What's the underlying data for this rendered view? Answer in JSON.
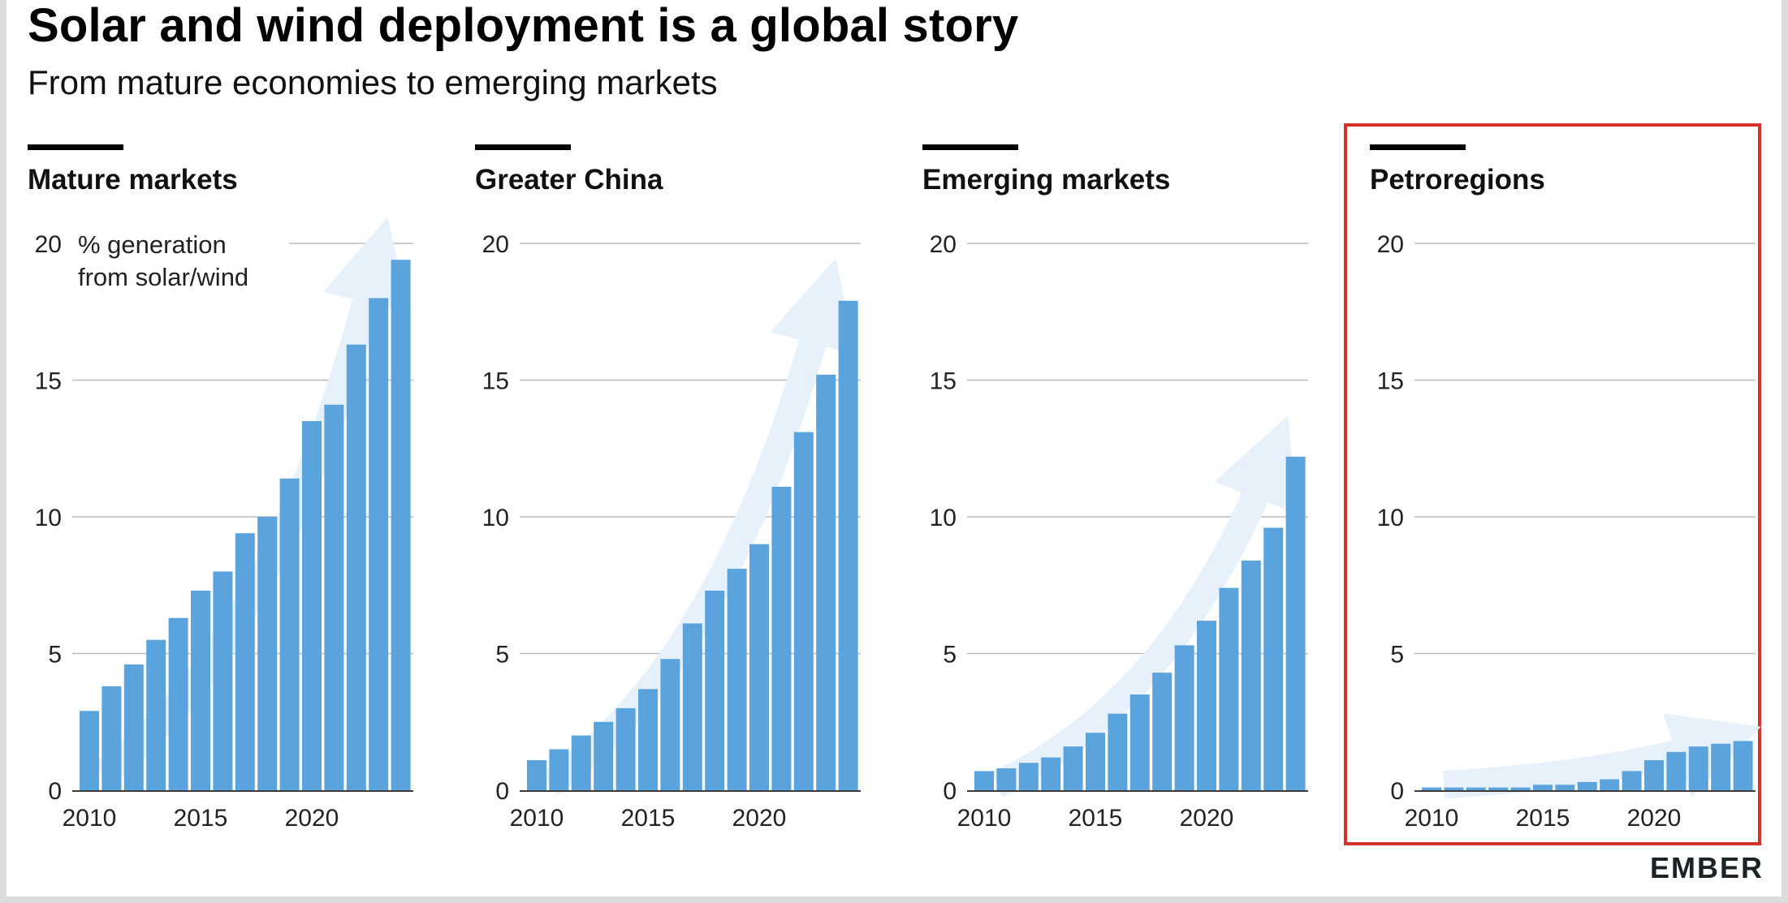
{
  "title": "Solar and wind deployment is a global story",
  "subtitle": "From mature economies to emerging markets",
  "logo_text": "EMBER",
  "colors": {
    "bar": "#5ba3dc",
    "arrow": "#e6f1fb",
    "gridline": "#b9bcbf",
    "highlight_border": "#d6312b",
    "panel_rule": "#000000"
  },
  "chart_data": [
    {
      "type": "bar",
      "title": "Mature markets",
      "ylabel": "% generation from solar/wind",
      "ylim": [
        0,
        20
      ],
      "yticks": [
        0,
        5,
        10,
        15,
        20
      ],
      "xticks": [
        "2010",
        "2015",
        "2020"
      ],
      "grid": true,
      "highlighted": false,
      "categories": [
        "2010",
        "2011",
        "2012",
        "2013",
        "2014",
        "2015",
        "2016",
        "2017",
        "2018",
        "2019",
        "2020",
        "2021",
        "2022",
        "2023",
        "2024"
      ],
      "values": [
        2.9,
        3.8,
        4.6,
        5.5,
        6.3,
        7.3,
        8.0,
        9.4,
        10.0,
        11.4,
        13.5,
        14.1,
        16.3,
        18.0,
        19.4
      ]
    },
    {
      "type": "bar",
      "title": "Greater China",
      "ylabel": "",
      "ylim": [
        0,
        20
      ],
      "yticks": [
        0,
        5,
        10,
        15,
        20
      ],
      "xticks": [
        "2010",
        "2015",
        "2020"
      ],
      "grid": true,
      "highlighted": false,
      "categories": [
        "2010",
        "2011",
        "2012",
        "2013",
        "2014",
        "2015",
        "2016",
        "2017",
        "2018",
        "2019",
        "2020",
        "2021",
        "2022",
        "2023",
        "2024"
      ],
      "values": [
        1.1,
        1.5,
        2.0,
        2.5,
        3.0,
        3.7,
        4.8,
        6.1,
        7.3,
        8.1,
        9.0,
        11.1,
        13.1,
        15.2,
        17.9
      ]
    },
    {
      "type": "bar",
      "title": "Emerging markets",
      "ylabel": "",
      "ylim": [
        0,
        20
      ],
      "yticks": [
        0,
        5,
        10,
        15,
        20
      ],
      "xticks": [
        "2010",
        "2015",
        "2020"
      ],
      "grid": true,
      "highlighted": false,
      "categories": [
        "2010",
        "2011",
        "2012",
        "2013",
        "2014",
        "2015",
        "2016",
        "2017",
        "2018",
        "2019",
        "2020",
        "2021",
        "2022",
        "2023",
        "2024"
      ],
      "values": [
        0.7,
        0.8,
        1.0,
        1.2,
        1.6,
        2.1,
        2.8,
        3.5,
        4.3,
        5.3,
        6.2,
        7.4,
        8.4,
        9.6,
        12.2
      ]
    },
    {
      "type": "bar",
      "title": "Petroregions",
      "ylabel": "",
      "ylim": [
        0,
        20
      ],
      "yticks": [
        0,
        5,
        10,
        15,
        20
      ],
      "xticks": [
        "2010",
        "2015",
        "2020"
      ],
      "grid": true,
      "highlighted": true,
      "categories": [
        "2010",
        "2011",
        "2012",
        "2013",
        "2014",
        "2015",
        "2016",
        "2017",
        "2018",
        "2019",
        "2020",
        "2021",
        "2022",
        "2023",
        "2024"
      ],
      "values": [
        0.1,
        0.1,
        0.1,
        0.1,
        0.1,
        0.2,
        0.2,
        0.3,
        0.4,
        0.7,
        1.1,
        1.4,
        1.6,
        1.7,
        1.8
      ]
    }
  ]
}
